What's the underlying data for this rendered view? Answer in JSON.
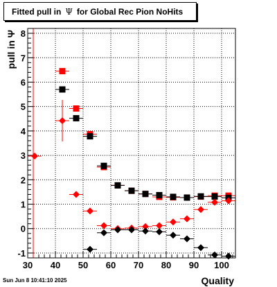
{
  "title": {
    "prefix": "Fitted pull in",
    "symbol": "Ψ",
    "suffix": "for Global Rec Pion NoHits"
  },
  "timestamp": "Sun Jun  8 10:41:10 2025",
  "colors": {
    "red": "#ff0000",
    "black": "#000000"
  },
  "chart_data": {
    "type": "scatter",
    "xlabel": "Quality",
    "ylabel": "pull in Ψ",
    "xlim": [
      30,
      105
    ],
    "ylim": [
      -1.2,
      8.2
    ],
    "grid": true,
    "x_ticks": [
      30,
      40,
      50,
      60,
      70,
      80,
      90,
      100
    ],
    "y_ticks": [
      -1,
      0,
      1,
      2,
      3,
      4,
      5,
      6,
      7,
      8
    ],
    "series": [
      {
        "marker": "square",
        "color": "#ff0000",
        "x": [
          42.5,
          47.5,
          52.5,
          57.5,
          62.5,
          67.5,
          72.5,
          77.5,
          82.5,
          87.5,
          92.5,
          97.5,
          102.5
        ],
        "y": [
          6.45,
          4.92,
          3.87,
          2.52,
          1.77,
          1.55,
          1.42,
          1.3,
          1.28,
          1.27,
          1.31,
          1.35,
          1.35
        ]
      },
      {
        "marker": "square",
        "color": "#000000",
        "x": [
          42.5,
          47.5,
          52.5,
          57.5,
          62.5,
          67.5,
          72.5,
          77.5,
          82.5,
          87.5,
          92.5,
          97.5,
          102.5
        ],
        "y": [
          5.7,
          4.52,
          3.78,
          2.57,
          1.77,
          1.55,
          1.42,
          1.37,
          1.3,
          1.27,
          1.32,
          1.31,
          1.26
        ]
      },
      {
        "marker": "diamond",
        "color": "#ff0000",
        "x": [
          32.5,
          42.5,
          47.5,
          52.5,
          57.5,
          62.5,
          67.5,
          72.5,
          77.5,
          82.5,
          87.5,
          92.5,
          97.5,
          102.5
        ],
        "y": [
          2.97,
          4.42,
          1.4,
          0.72,
          0.12,
          0.0,
          0.02,
          0.08,
          0.12,
          0.27,
          0.4,
          0.78,
          1.08,
          1.14
        ],
        "yerr": [
          0,
          0.85,
          0,
          0,
          0,
          0,
          0,
          0,
          0,
          0,
          0,
          0,
          0,
          0
        ]
      },
      {
        "marker": "diamond",
        "color": "#000000",
        "x": [
          52.5,
          57.5,
          62.5,
          67.5,
          72.5,
          77.5,
          82.5,
          87.5,
          92.5,
          97.5,
          102.5
        ],
        "y": [
          -0.85,
          -0.17,
          -0.05,
          -0.05,
          -0.1,
          -0.13,
          -0.27,
          -0.42,
          -0.78,
          -1.08,
          -1.13
        ]
      }
    ]
  }
}
